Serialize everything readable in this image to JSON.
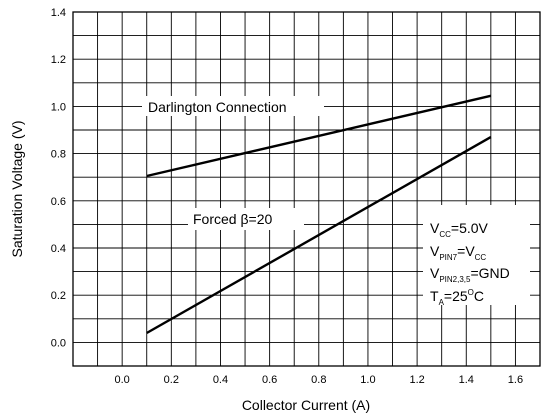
{
  "chart_data": {
    "type": "line",
    "xlabel": "Collector Current (A)",
    "ylabel": "Saturation Voltage (V)",
    "xlim": [
      -0.2,
      1.7
    ],
    "ylim": [
      -0.1,
      1.4
    ],
    "x_ticks": [
      "0.0",
      "0.2",
      "0.4",
      "0.6",
      "0.8",
      "1.0",
      "1.2",
      "1.4",
      "1.6"
    ],
    "y_ticks": [
      "0.0",
      "0.2",
      "0.4",
      "0.6",
      "0.8",
      "1.0",
      "1.2",
      "1.4"
    ],
    "grid": true,
    "series": [
      {
        "name": "Darlington Connection",
        "x": [
          0.1,
          1.5
        ],
        "y": [
          0.705,
          1.045
        ]
      },
      {
        "name": "Forced β=20",
        "x": [
          0.1,
          1.5
        ],
        "y": [
          0.04,
          0.87
        ]
      }
    ],
    "conditions": {
      "vcc": {
        "main": "V",
        "sub": "CC",
        "rest": "=5.0V"
      },
      "vpin7": {
        "main": "V",
        "sub": "PIN7",
        "mid": "=V",
        "sub2": "CC"
      },
      "vpin235": {
        "main": "V",
        "sub": "PIN2,3,5",
        "rest": "=GND"
      },
      "ta": {
        "main": "T",
        "sub": "A",
        "mid": "=25",
        "sup": "O",
        "rest": "C"
      }
    }
  }
}
